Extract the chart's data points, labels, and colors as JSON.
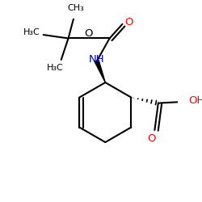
{
  "bg_color": "#ffffff",
  "bond_color": "#000000",
  "o_color": "#ff0000",
  "n_color": "#0000bb",
  "lw": 1.5,
  "fig_size": [
    2.5,
    2.5
  ],
  "dpi": 100,
  "xlim": [
    0,
    250
  ],
  "ylim": [
    0,
    250
  ]
}
